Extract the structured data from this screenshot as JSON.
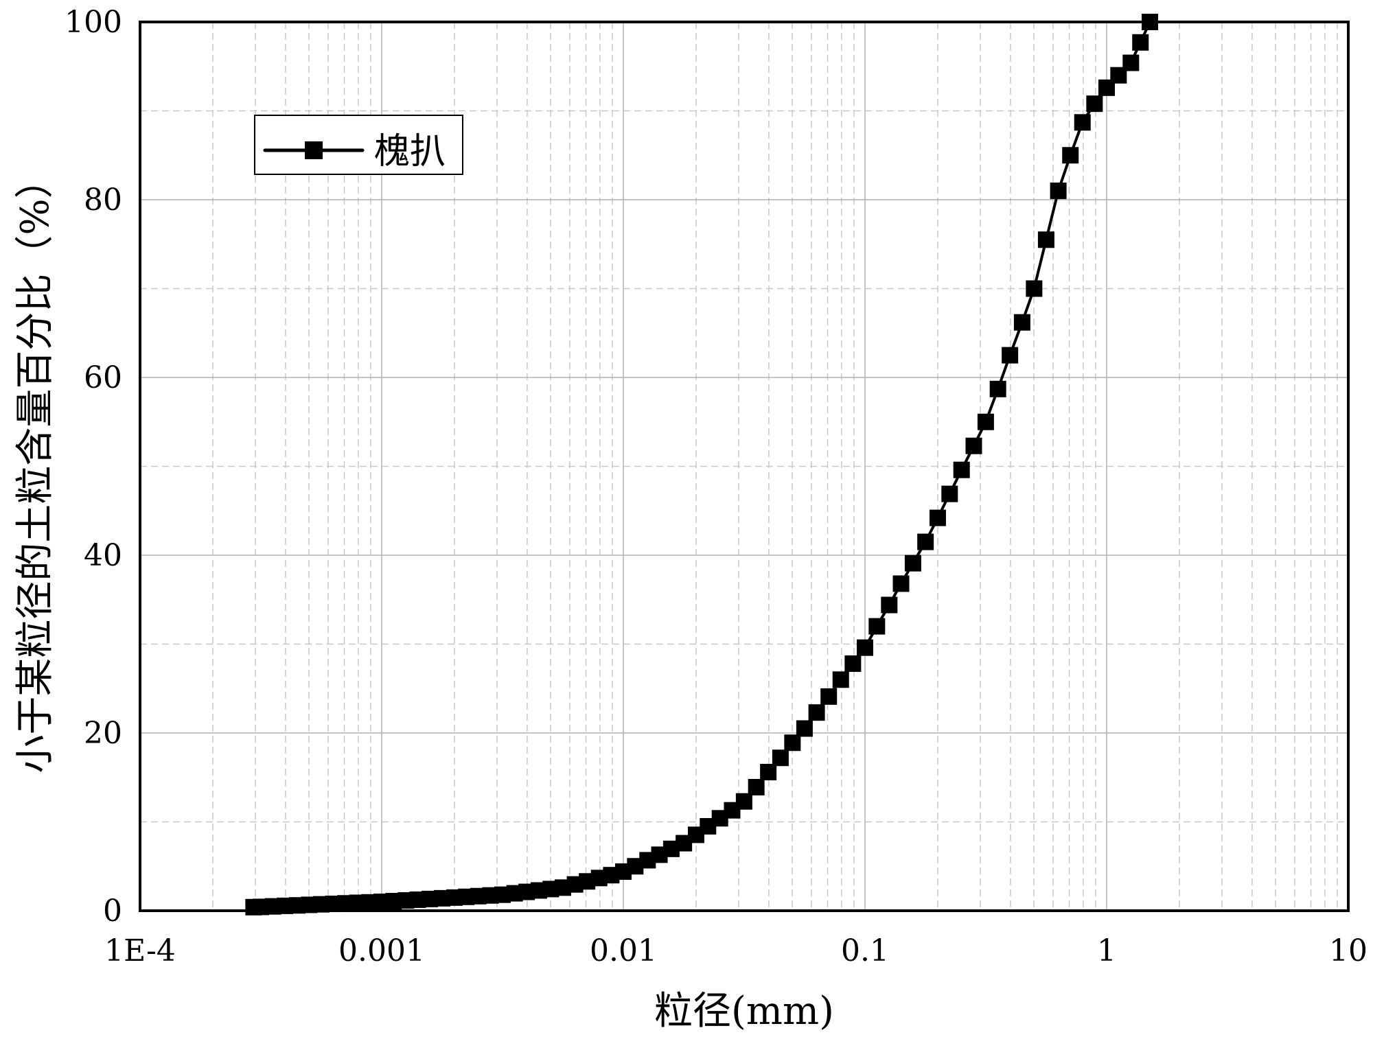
{
  "chart_data": {
    "type": "line",
    "xlabel": "粒径(mm)",
    "ylabel": "小于某粒径的土粒含量百分比（%）",
    "x_scale": "log",
    "xlim": [
      0.0001,
      10
    ],
    "ylim": [
      0,
      100
    ],
    "x_ticks": [
      0.0001,
      0.001,
      0.01,
      0.1,
      1,
      10
    ],
    "x_tick_labels": [
      "1E-4",
      "0.001",
      "0.01",
      "0.1",
      "1",
      "10"
    ],
    "y_ticks": [
      0,
      20,
      40,
      60,
      80,
      100
    ],
    "y_tick_labels": [
      "0",
      "20",
      "40",
      "60",
      "80",
      "100"
    ],
    "grid": true,
    "legend_placement": "top-left",
    "marker": "square",
    "colors": {
      "series": "#000000",
      "major_grid": "#b0b0b0",
      "minor_grid": "#c8c8c8"
    },
    "series": [
      {
        "name": "槐扒",
        "x": [
          0.000295,
          0.000316,
          0.000355,
          0.000398,
          0.000447,
          0.000501,
          0.000562,
          0.000631,
          0.000708,
          0.000794,
          0.000891,
          0.001,
          0.00112,
          0.00126,
          0.00141,
          0.00158,
          0.00178,
          0.002,
          0.00224,
          0.00251,
          0.00282,
          0.00316,
          0.00355,
          0.00398,
          0.00447,
          0.00501,
          0.00562,
          0.00631,
          0.00708,
          0.00794,
          0.00891,
          0.01,
          0.0112,
          0.0126,
          0.0141,
          0.0158,
          0.0178,
          0.02,
          0.0224,
          0.0251,
          0.0282,
          0.0316,
          0.0355,
          0.0398,
          0.0447,
          0.0501,
          0.0562,
          0.0631,
          0.0708,
          0.0794,
          0.0891,
          0.1,
          0.112,
          0.126,
          0.141,
          0.158,
          0.178,
          0.2,
          0.224,
          0.251,
          0.282,
          0.316,
          0.355,
          0.398,
          0.447,
          0.501,
          0.562,
          0.631,
          0.708,
          0.794,
          0.891,
          1.0,
          1.12,
          1.26,
          1.38,
          1.51
        ],
        "y": [
          0.4,
          0.43,
          0.49,
          0.55,
          0.6,
          0.66,
          0.72,
          0.77,
          0.83,
          0.89,
          0.94,
          1.0,
          1.08,
          1.16,
          1.24,
          1.32,
          1.4,
          1.48,
          1.56,
          1.64,
          1.72,
          1.8,
          1.96,
          2.12,
          2.28,
          2.44,
          2.6,
          2.96,
          3.3,
          3.68,
          4.0,
          4.4,
          5.0,
          5.68,
          6.3,
          6.96,
          7.6,
          8.54,
          9.5,
          10.4,
          11.3,
          12.3,
          13.9,
          15.6,
          17.2,
          18.9,
          20.5,
          22.3,
          24.1,
          26.0,
          27.8,
          29.6,
          32.0,
          34.4,
          36.8,
          39.1,
          41.5,
          44.2,
          46.9,
          49.6,
          52.3,
          55.0,
          58.7,
          62.5,
          66.2,
          70.0,
          75.5,
          81.0,
          85.0,
          88.7,
          90.8,
          92.6,
          94.0,
          95.4,
          97.7,
          100
        ]
      }
    ]
  }
}
